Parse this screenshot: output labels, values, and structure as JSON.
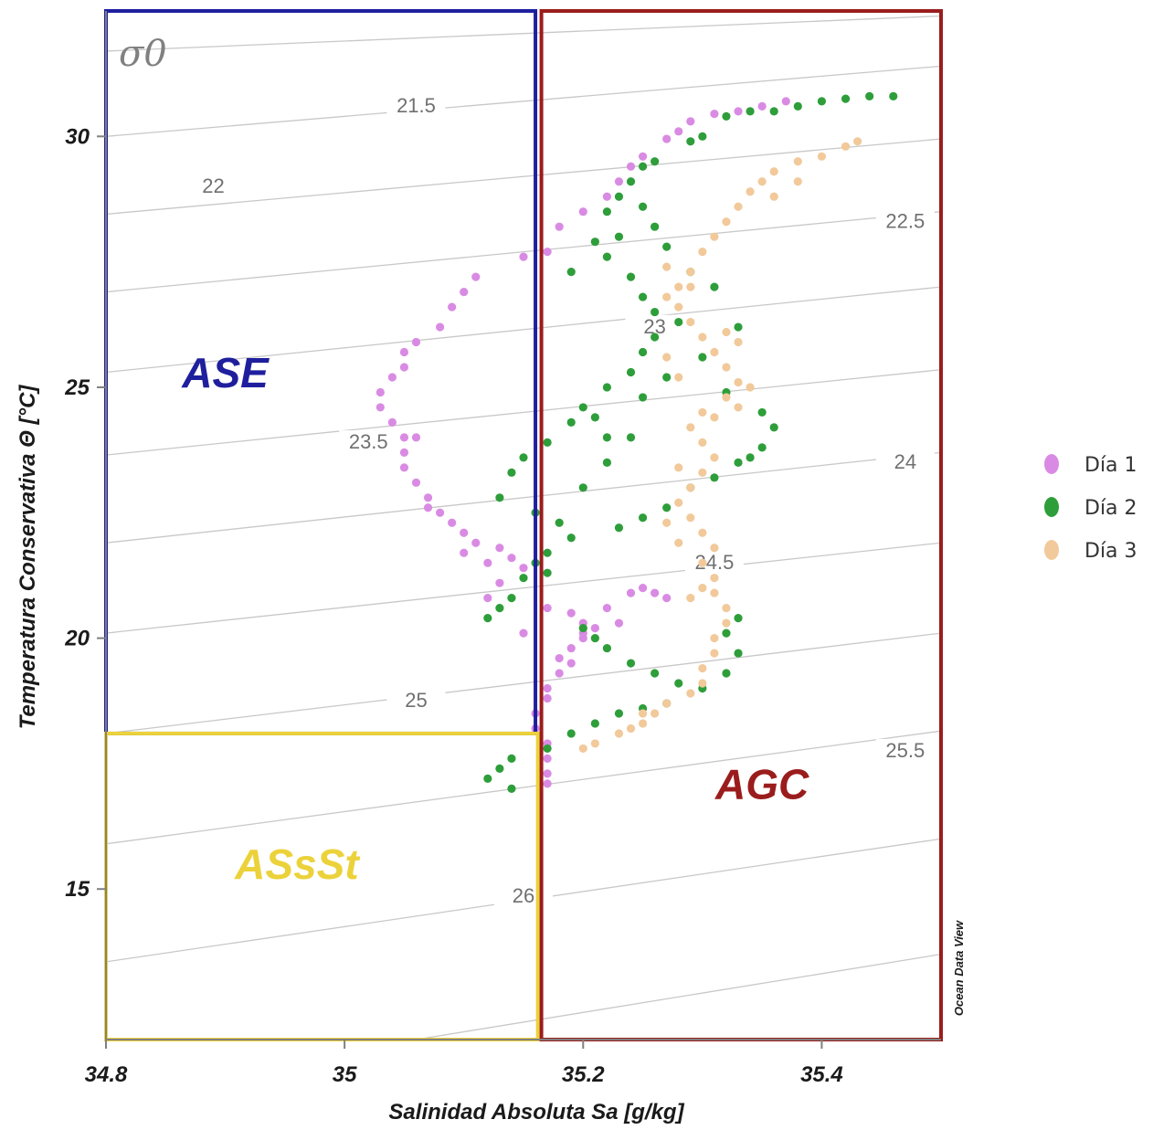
{
  "chart_data": {
    "type": "scatter",
    "title": "",
    "xlabel": "Salinidad Absoluta Sa [g/kg]",
    "ylabel": "Temperatura Conservativa Θ [°C]",
    "xlim": [
      34.8,
      35.5
    ],
    "ylim": [
      12,
      32.5
    ],
    "xticks": [
      {
        "value": 34.8,
        "label": "34.8"
      },
      {
        "value": 35.0,
        "label": "35"
      },
      {
        "value": 35.2,
        "label": "35.2"
      },
      {
        "value": 35.4,
        "label": "35.4"
      }
    ],
    "yticks": [
      {
        "value": 15,
        "label": "15"
      },
      {
        "value": 20,
        "label": "20"
      },
      {
        "value": 25,
        "label": "25"
      },
      {
        "value": 30,
        "label": "30"
      }
    ],
    "grid": false,
    "legend_position": "right",
    "density_symbol": "σ0",
    "watermark": "Ocean Data View",
    "isopycnal_labels": [
      {
        "label": "21.5",
        "x": 35.06,
        "y": 30.55
      },
      {
        "label": "22",
        "x": 34.89,
        "y": 28.95
      },
      {
        "label": "22.5",
        "x": 35.47,
        "y": 28.25
      },
      {
        "label": "23",
        "x": 35.26,
        "y": 26.15
      },
      {
        "label": "23.5",
        "x": 35.02,
        "y": 23.85
      },
      {
        "label": "24",
        "x": 35.47,
        "y": 23.45
      },
      {
        "label": "24.5",
        "x": 35.31,
        "y": 21.45
      },
      {
        "label": "25",
        "x": 35.06,
        "y": 18.7
      },
      {
        "label": "25.5",
        "x": 35.47,
        "y": 17.7
      },
      {
        "label": "26",
        "x": 35.15,
        "y": 14.8
      }
    ],
    "isopycnal_lines": [
      {
        "x1": 34.8,
        "y1": 31.7,
        "x2": 35.5,
        "y2": 32.4
      },
      {
        "x1": 34.8,
        "y1": 30.0,
        "x2": 35.5,
        "y2": 31.4
      },
      {
        "x1": 34.8,
        "y1": 28.45,
        "x2": 35.5,
        "y2": 29.95
      },
      {
        "x1": 34.8,
        "y1": 26.9,
        "x2": 35.5,
        "y2": 28.5
      },
      {
        "x1": 34.8,
        "y1": 25.3,
        "x2": 35.5,
        "y2": 27.0
      },
      {
        "x1": 34.8,
        "y1": 23.65,
        "x2": 35.5,
        "y2": 25.35
      },
      {
        "x1": 34.8,
        "y1": 21.9,
        "x2": 35.5,
        "y2": 23.7
      },
      {
        "x1": 34.8,
        "y1": 20.1,
        "x2": 35.5,
        "y2": 21.9
      },
      {
        "x1": 34.8,
        "y1": 18.1,
        "x2": 35.5,
        "y2": 20.1
      },
      {
        "x1": 34.8,
        "y1": 15.9,
        "x2": 35.5,
        "y2": 18.15
      },
      {
        "x1": 34.8,
        "y1": 13.55,
        "x2": 35.5,
        "y2": 16.0
      },
      {
        "x1": 35.06,
        "y1": 12.0,
        "x2": 35.5,
        "y2": 13.7
      }
    ],
    "regions": [
      {
        "name": "ASE",
        "color": "#1f1f9e",
        "x0": 34.8,
        "x1": 35.16,
        "y0": 18.1,
        "y1": 32.5,
        "label_x": 34.9,
        "label_y": 25.0
      },
      {
        "name": "ASsSt",
        "color": "#ecd23a",
        "x0": 34.8,
        "x1": 35.162,
        "y0": 12.0,
        "y1": 18.1,
        "label_x": 34.96,
        "label_y": 15.2
      },
      {
        "name": "AGC",
        "color": "#9b1c1c",
        "x0": 35.165,
        "x1": 35.5,
        "y0": 12.0,
        "y1": 32.5,
        "label_x": 35.35,
        "label_y": 16.8
      }
    ],
    "series": [
      {
        "name": "Día 1",
        "color": "#d98be3",
        "points": [
          [
            35.37,
            30.7
          ],
          [
            35.35,
            30.6
          ],
          [
            35.33,
            30.5
          ],
          [
            35.31,
            30.45
          ],
          [
            35.29,
            30.3
          ],
          [
            35.28,
            30.1
          ],
          [
            35.27,
            29.95
          ],
          [
            35.25,
            29.6
          ],
          [
            35.24,
            29.4
          ],
          [
            35.23,
            29.1
          ],
          [
            35.22,
            28.8
          ],
          [
            35.2,
            28.5
          ],
          [
            35.18,
            28.2
          ],
          [
            35.17,
            27.7
          ],
          [
            35.15,
            27.6
          ],
          [
            35.11,
            27.2
          ],
          [
            35.1,
            26.9
          ],
          [
            35.09,
            26.6
          ],
          [
            35.08,
            26.2
          ],
          [
            35.06,
            25.9
          ],
          [
            35.05,
            25.7
          ],
          [
            35.05,
            25.4
          ],
          [
            35.04,
            25.2
          ],
          [
            35.03,
            24.9
          ],
          [
            35.03,
            24.6
          ],
          [
            35.04,
            24.3
          ],
          [
            35.05,
            24.0
          ],
          [
            35.05,
            23.7
          ],
          [
            35.05,
            23.4
          ],
          [
            35.06,
            23.1
          ],
          [
            35.07,
            22.8
          ],
          [
            35.08,
            22.5
          ],
          [
            35.09,
            22.3
          ],
          [
            35.1,
            22.1
          ],
          [
            35.11,
            21.9
          ],
          [
            35.13,
            21.8
          ],
          [
            35.14,
            21.6
          ],
          [
            35.15,
            21.4
          ],
          [
            35.13,
            21.1
          ],
          [
            35.12,
            20.8
          ],
          [
            35.17,
            20.6
          ],
          [
            35.19,
            20.5
          ],
          [
            35.2,
            20.3
          ],
          [
            35.2,
            20.1
          ],
          [
            35.19,
            19.8
          ],
          [
            35.18,
            19.6
          ],
          [
            35.18,
            19.3
          ],
          [
            35.17,
            19.0
          ],
          [
            35.17,
            18.8
          ],
          [
            35.16,
            18.5
          ],
          [
            35.16,
            18.2
          ],
          [
            35.17,
            17.9
          ],
          [
            35.17,
            17.6
          ],
          [
            35.17,
            17.3
          ],
          [
            35.17,
            17.1
          ],
          [
            35.24,
            20.9
          ],
          [
            35.25,
            21.0
          ],
          [
            35.26,
            20.9
          ],
          [
            35.27,
            20.8
          ],
          [
            35.22,
            20.6
          ],
          [
            35.21,
            20.2
          ],
          [
            35.23,
            20.3
          ],
          [
            35.2,
            20.0
          ],
          [
            35.19,
            19.5
          ],
          [
            35.15,
            20.1
          ],
          [
            35.12,
            21.5
          ],
          [
            35.1,
            21.7
          ],
          [
            35.06,
            24.0
          ],
          [
            35.07,
            22.6
          ]
        ]
      },
      {
        "name": "Día 2",
        "color": "#2e9e3a",
        "points": [
          [
            35.46,
            30.8
          ],
          [
            35.44,
            30.8
          ],
          [
            35.42,
            30.75
          ],
          [
            35.4,
            30.7
          ],
          [
            35.38,
            30.6
          ],
          [
            35.36,
            30.5
          ],
          [
            35.34,
            30.5
          ],
          [
            35.32,
            30.4
          ],
          [
            35.3,
            30.0
          ],
          [
            35.29,
            29.9
          ],
          [
            35.26,
            29.5
          ],
          [
            35.25,
            29.4
          ],
          [
            35.24,
            29.1
          ],
          [
            35.23,
            28.8
          ],
          [
            35.22,
            28.5
          ],
          [
            35.23,
            28.0
          ],
          [
            35.22,
            27.6
          ],
          [
            35.24,
            27.2
          ],
          [
            35.25,
            26.8
          ],
          [
            35.26,
            26.5
          ],
          [
            35.28,
            26.3
          ],
          [
            35.26,
            26.0
          ],
          [
            35.25,
            25.7
          ],
          [
            35.24,
            25.3
          ],
          [
            35.22,
            25.0
          ],
          [
            35.2,
            24.6
          ],
          [
            35.19,
            24.3
          ],
          [
            35.17,
            23.9
          ],
          [
            35.15,
            23.6
          ],
          [
            35.14,
            23.3
          ],
          [
            35.13,
            22.8
          ],
          [
            35.16,
            22.5
          ],
          [
            35.18,
            22.3
          ],
          [
            35.19,
            22.0
          ],
          [
            35.17,
            21.7
          ],
          [
            35.16,
            21.5
          ],
          [
            35.17,
            21.3
          ],
          [
            35.15,
            21.2
          ],
          [
            35.14,
            20.8
          ],
          [
            35.13,
            20.6
          ],
          [
            35.12,
            20.4
          ],
          [
            35.2,
            20.2
          ],
          [
            35.21,
            20.0
          ],
          [
            35.22,
            19.8
          ],
          [
            35.24,
            19.5
          ],
          [
            35.26,
            19.3
          ],
          [
            35.28,
            19.1
          ],
          [
            35.3,
            19.0
          ],
          [
            35.32,
            19.3
          ],
          [
            35.33,
            19.7
          ],
          [
            35.32,
            20.1
          ],
          [
            35.33,
            20.4
          ],
          [
            35.27,
            18.7
          ],
          [
            35.25,
            18.6
          ],
          [
            35.23,
            18.5
          ],
          [
            35.21,
            18.3
          ],
          [
            35.19,
            18.1
          ],
          [
            35.17,
            17.8
          ],
          [
            35.14,
            17.6
          ],
          [
            35.13,
            17.4
          ],
          [
            35.12,
            17.2
          ],
          [
            35.14,
            17.0
          ],
          [
            35.35,
            24.5
          ],
          [
            35.36,
            24.2
          ],
          [
            35.35,
            23.8
          ],
          [
            35.34,
            23.6
          ],
          [
            35.33,
            23.5
          ],
          [
            35.31,
            23.2
          ],
          [
            35.29,
            23.0
          ],
          [
            35.27,
            22.6
          ],
          [
            35.25,
            22.4
          ],
          [
            35.23,
            22.2
          ],
          [
            35.22,
            24.0
          ],
          [
            35.21,
            24.4
          ],
          [
            35.25,
            24.8
          ],
          [
            35.27,
            25.2
          ],
          [
            35.3,
            25.6
          ],
          [
            35.32,
            24.9
          ],
          [
            35.33,
            26.2
          ],
          [
            35.31,
            27.0
          ],
          [
            35.29,
            27.3
          ],
          [
            35.27,
            27.8
          ],
          [
            35.26,
            28.2
          ],
          [
            35.25,
            28.6
          ],
          [
            35.21,
            27.9
          ],
          [
            35.19,
            27.3
          ],
          [
            35.24,
            24.0
          ],
          [
            35.22,
            23.5
          ],
          [
            35.2,
            23.0
          ]
        ]
      },
      {
        "name": "Día 3",
        "color": "#f2c99a",
        "points": [
          [
            35.43,
            29.9
          ],
          [
            35.42,
            29.8
          ],
          [
            35.4,
            29.6
          ],
          [
            35.38,
            29.5
          ],
          [
            35.36,
            29.3
          ],
          [
            35.35,
            29.1
          ],
          [
            35.34,
            28.9
          ],
          [
            35.33,
            28.6
          ],
          [
            35.32,
            28.3
          ],
          [
            35.31,
            28.0
          ],
          [
            35.3,
            27.7
          ],
          [
            35.29,
            27.3
          ],
          [
            35.28,
            27.0
          ],
          [
            35.28,
            26.6
          ],
          [
            35.29,
            26.3
          ],
          [
            35.3,
            26.0
          ],
          [
            35.31,
            25.7
          ],
          [
            35.32,
            25.4
          ],
          [
            35.33,
            25.1
          ],
          [
            35.32,
            24.8
          ],
          [
            35.3,
            24.5
          ],
          [
            35.29,
            24.2
          ],
          [
            35.3,
            23.9
          ],
          [
            35.31,
            23.6
          ],
          [
            35.3,
            23.3
          ],
          [
            35.29,
            23.0
          ],
          [
            35.28,
            22.7
          ],
          [
            35.29,
            22.4
          ],
          [
            35.3,
            22.1
          ],
          [
            35.31,
            21.8
          ],
          [
            35.3,
            21.5
          ],
          [
            35.31,
            21.2
          ],
          [
            35.31,
            20.9
          ],
          [
            35.32,
            20.6
          ],
          [
            35.32,
            20.3
          ],
          [
            35.31,
            20.0
          ],
          [
            35.31,
            19.7
          ],
          [
            35.3,
            19.4
          ],
          [
            35.3,
            19.1
          ],
          [
            35.29,
            18.9
          ],
          [
            35.27,
            18.7
          ],
          [
            35.26,
            18.5
          ],
          [
            35.25,
            18.3
          ],
          [
            35.23,
            18.1
          ],
          [
            35.21,
            17.9
          ],
          [
            35.2,
            17.8
          ],
          [
            35.27,
            26.8
          ],
          [
            35.27,
            27.4
          ],
          [
            35.29,
            27.0
          ],
          [
            35.31,
            24.4
          ],
          [
            35.28,
            25.2
          ],
          [
            35.27,
            25.6
          ],
          [
            35.33,
            24.6
          ],
          [
            35.34,
            25.0
          ],
          [
            35.33,
            25.9
          ],
          [
            35.32,
            26.1
          ],
          [
            35.36,
            28.8
          ],
          [
            35.38,
            29.1
          ],
          [
            35.3,
            21.0
          ],
          [
            35.28,
            21.9
          ],
          [
            35.27,
            22.3
          ],
          [
            35.28,
            23.4
          ],
          [
            35.29,
            20.8
          ],
          [
            35.25,
            18.5
          ],
          [
            35.24,
            18.2
          ]
        ]
      }
    ]
  }
}
